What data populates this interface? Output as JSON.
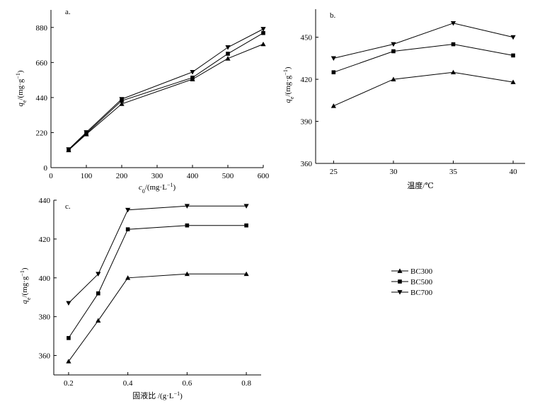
{
  "chart_data": [
    {
      "type": "line",
      "panel_label": "a.",
      "xlabel_main": "c",
      "xlabel_sub": "0",
      "xlabel_unit": "/(mg·L",
      "xlabel_sup": "−1",
      "xlabel_end": ")",
      "ylabel_main": "q",
      "ylabel_sub": "e",
      "ylabel_unit": "/(mg·g",
      "ylabel_sup": "−1",
      "ylabel_end": ")",
      "xlim": [
        0,
        600
      ],
      "ylim": [
        0,
        990
      ],
      "xticks": [
        0,
        100,
        200,
        300,
        400,
        500,
        600
      ],
      "yticks": [
        0,
        220,
        440,
        660,
        880
      ],
      "x": [
        50,
        100,
        200,
        400,
        500,
        600
      ],
      "series": [
        {
          "name": "BC300",
          "marker": "triangle-up",
          "values": [
            110,
            210,
            400,
            555,
            685,
            775
          ]
        },
        {
          "name": "BC500",
          "marker": "square",
          "values": [
            112,
            215,
            420,
            565,
            715,
            845
          ]
        },
        {
          "name": "BC700",
          "marker": "triangle-down",
          "values": [
            115,
            222,
            430,
            600,
            755,
            870
          ]
        }
      ]
    },
    {
      "type": "line",
      "panel_label": "b.",
      "xlabel": "温度/℃",
      "ylabel_main": "q",
      "ylabel_sub": "e",
      "ylabel_unit": "/(mg·g",
      "ylabel_sup": "−1",
      "ylabel_end": ")",
      "xlim": [
        23.5,
        41
      ],
      "ylim": [
        360,
        470
      ],
      "xticks": [
        25,
        30,
        35,
        40
      ],
      "yticks": [
        360,
        390,
        420,
        450
      ],
      "x": [
        25,
        30,
        35,
        40
      ],
      "series": [
        {
          "name": "BC300",
          "marker": "triangle-up",
          "values": [
            401,
            420,
            425,
            418
          ]
        },
        {
          "name": "BC500",
          "marker": "square",
          "values": [
            425,
            440,
            445,
            437
          ]
        },
        {
          "name": "BC700",
          "marker": "triangle-down",
          "values": [
            435,
            445,
            460,
            450
          ]
        }
      ]
    },
    {
      "type": "line",
      "panel_label": "c.",
      "xlabel": "固液比 /(g·L",
      "xlabel_sup": "−1",
      "xlabel_end": ")",
      "ylabel_main": "q",
      "ylabel_sub": "e",
      "ylabel_unit": "/(mg·g",
      "ylabel_sup": "−1",
      "ylabel_end": ")",
      "xlim": [
        0.15,
        0.85
      ],
      "ylim": [
        350,
        440
      ],
      "xticks": [
        0.2,
        0.4,
        0.6,
        0.8
      ],
      "xtick_labels": [
        "0.2",
        "0.4",
        "0.6",
        "0.8"
      ],
      "yticks": [
        360,
        380,
        400,
        420,
        440
      ],
      "x": [
        0.2,
        0.3,
        0.4,
        0.6,
        0.8
      ],
      "series": [
        {
          "name": "BC300",
          "marker": "triangle-up",
          "values": [
            357,
            378,
            400,
            402,
            402
          ]
        },
        {
          "name": "BC500",
          "marker": "square",
          "values": [
            369,
            392,
            425,
            427,
            427
          ]
        },
        {
          "name": "BC700",
          "marker": "triangle-down",
          "values": [
            387,
            402,
            435,
            437,
            437
          ]
        }
      ]
    }
  ],
  "legend": {
    "entries": [
      {
        "name": "BC300",
        "marker": "triangle-up"
      },
      {
        "name": "BC500",
        "marker": "square"
      },
      {
        "name": "BC700",
        "marker": "triangle-down"
      }
    ]
  }
}
